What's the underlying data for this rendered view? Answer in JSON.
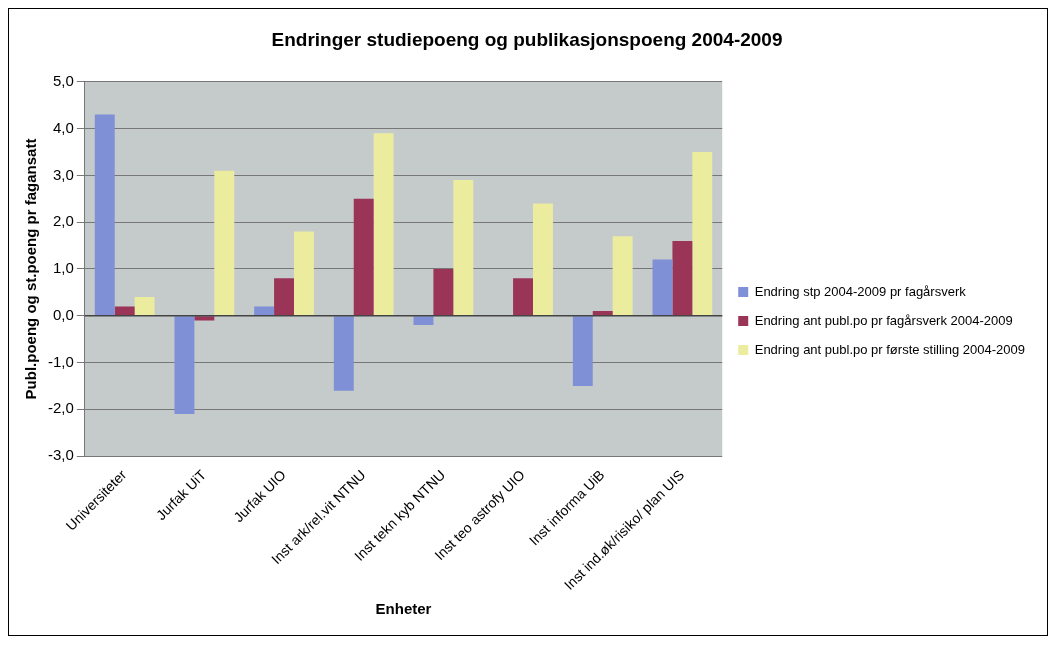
{
  "chart_data": {
    "type": "bar",
    "title": "Endringer studiepoeng og publikasjonspoeng 2004-2009",
    "xlabel": "Enheter",
    "ylabel": "Publ.poeng og st.poeng pr fagansatt",
    "categories": [
      "Universiteter",
      "Jurfak UiT",
      "Jurfak UIO",
      "Inst ark/rel.vit NTNU",
      "Inst tekn kyb NTNU",
      "Inst teo astrofy UIO",
      "Inst informa UiB",
      "Inst ind.øk/risiko/ plan UIS"
    ],
    "series": [
      {
        "name": "Endring stp 2004-2009 pr fagårsverk",
        "color": "#7f90d6",
        "values": [
          4.3,
          -2.1,
          0.2,
          -1.6,
          -0.2,
          null,
          -1.5,
          1.2
        ]
      },
      {
        "name": "Endring ant publ.po pr fagårsverk 2004-2009",
        "color": "#9a3558",
        "values": [
          0.2,
          -0.1,
          0.8,
          2.5,
          1.0,
          0.8,
          0.1,
          1.6
        ]
      },
      {
        "name": "Endring ant publ.po pr første stilling 2004-2009",
        "color": "#ecec9f",
        "values": [
          0.4,
          3.1,
          1.8,
          3.9,
          2.9,
          2.4,
          1.7,
          3.5
        ]
      }
    ],
    "ylim": [
      -3,
      5
    ],
    "yticks": [
      {
        "value": -3,
        "label": "-3,0"
      },
      {
        "value": -2,
        "label": "-2,0"
      },
      {
        "value": -1,
        "label": "-1,0"
      },
      {
        "value": 0,
        "label": "0,0"
      },
      {
        "value": 1,
        "label": "1,0"
      },
      {
        "value": 2,
        "label": "2,0"
      },
      {
        "value": 3,
        "label": "3,0"
      },
      {
        "value": 4,
        "label": "4,0"
      },
      {
        "value": 5,
        "label": "5,0"
      }
    ],
    "grid": "y",
    "legend": "right"
  }
}
